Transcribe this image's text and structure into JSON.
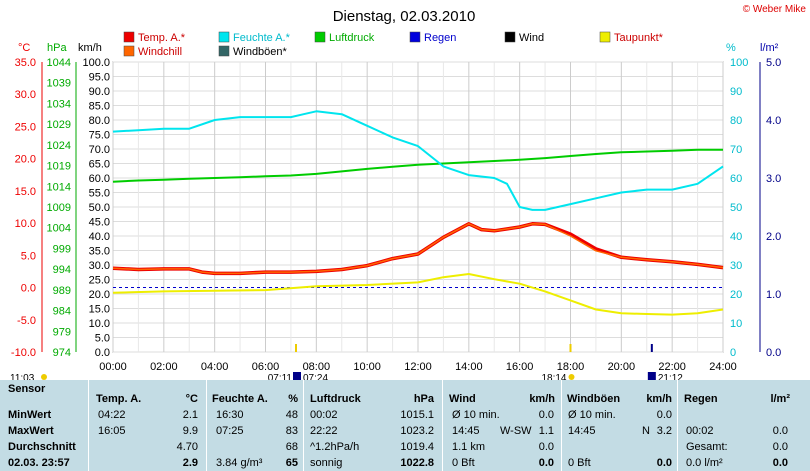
{
  "header": {
    "title": "Dienstag, 02.03.2010",
    "credit": "© Weber Mike"
  },
  "colors": {
    "temp": "#ee0000",
    "humidity": "#00e5ee",
    "pressure": "#00cc00",
    "rain": "#0000dd",
    "wind": "#000000",
    "dewpoint": "#eeee00",
    "windchill": "#ff6600",
    "gust": "#336666"
  },
  "legend": [
    {
      "label": "Temp. A.*",
      "color": "#ee0000"
    },
    {
      "label": "Feuchte A.*",
      "color": "#00e5ee"
    },
    {
      "label": "Luftdruck",
      "color": "#00cc00"
    },
    {
      "label": "Regen",
      "color": "#0000dd"
    },
    {
      "label": "Wind",
      "color": "#000000"
    },
    {
      "label": "Taupunkt*",
      "color": "#eeee00"
    },
    {
      "label": "Windchill",
      "color": "#ff6600"
    },
    {
      "label": "Windböen*",
      "color": "#336666"
    }
  ],
  "axis_units": {
    "celsius": "°C",
    "hpa": "hPa",
    "kmh": "km/h",
    "percent": "%",
    "rain": "l/m²"
  },
  "chart_data": {
    "type": "line",
    "title": "Dienstag, 02.03.2010",
    "x_range": [
      "00:00",
      "24:00"
    ],
    "x_ticks": [
      "00:00",
      "02:00",
      "04:00",
      "06:00",
      "08:00",
      "10:00",
      "12:00",
      "14:00",
      "16:00",
      "18:00",
      "20:00",
      "22:00",
      "24:00"
    ],
    "y_axes": {
      "celsius": {
        "range": [
          -10,
          35
        ],
        "ticks": [
          "-10.0",
          "-5.0",
          "0.0",
          "5.0",
          "10.0",
          "15.0",
          "20.0",
          "25.0",
          "30.0",
          "35.0"
        ]
      },
      "hpa": {
        "range": [
          974,
          1044
        ],
        "ticks": [
          "974",
          "979",
          "984",
          "989",
          "994",
          "999",
          "1004",
          "1009",
          "1014",
          "1019",
          "1024",
          "1029",
          "1034",
          "1039",
          "1044"
        ]
      },
      "kmh": {
        "range": [
          0,
          100
        ],
        "ticks": [
          "0.0",
          "5.0",
          "10.0",
          "15.0",
          "20.0",
          "25.0",
          "30.0",
          "35.0",
          "40.0",
          "45.0",
          "50.0",
          "55.0",
          "60.0",
          "65.0",
          "70.0",
          "75.0",
          "80.0",
          "85.0",
          "90.0",
          "95.0",
          "100.0"
        ]
      },
      "percent": {
        "range": [
          0,
          100
        ],
        "ticks": [
          "0",
          "10",
          "20",
          "30",
          "40",
          "50",
          "60",
          "70",
          "80",
          "90",
          "100"
        ]
      },
      "rain": {
        "range": [
          0,
          5
        ],
        "ticks": [
          "0.0",
          "1.0",
          "2.0",
          "3.0",
          "4.0",
          "5.0"
        ]
      }
    },
    "series": [
      {
        "name": "Temp. A.*",
        "axis": "celsius",
        "x": [
          0,
          1,
          2,
          3,
          3.5,
          4,
          5,
          6,
          7,
          8,
          9,
          10,
          11,
          12,
          13,
          14,
          14.5,
          15,
          16,
          16.5,
          17,
          18,
          19,
          20,
          21,
          22,
          23,
          24
        ],
        "y": [
          3.0,
          2.8,
          2.9,
          2.9,
          2.4,
          2.2,
          2.2,
          2.4,
          2.4,
          2.5,
          2.8,
          3.4,
          4.5,
          5.2,
          7.8,
          9.9,
          9.0,
          8.8,
          9.4,
          9.9,
          9.8,
          8.3,
          6.0,
          4.7,
          4.3,
          4.0,
          3.6,
          3.1
        ]
      },
      {
        "name": "Windchill",
        "axis": "celsius",
        "x": [
          0,
          1,
          2,
          3,
          3.5,
          4,
          5,
          6,
          7,
          8,
          9,
          10,
          11,
          12,
          13,
          14,
          14.5,
          15,
          16,
          16.5,
          17,
          18,
          19,
          20,
          21,
          22,
          23,
          24
        ],
        "y": [
          3.0,
          2.8,
          2.9,
          2.9,
          2.4,
          2.2,
          2.2,
          2.4,
          2.4,
          2.5,
          2.8,
          3.4,
          4.5,
          5.2,
          7.8,
          9.9,
          9.0,
          8.8,
          9.4,
          9.9,
          9.8,
          8.0,
          5.7,
          4.7,
          4.3,
          4.0,
          3.6,
          3.1
        ]
      },
      {
        "name": "Taupunkt*",
        "axis": "celsius",
        "x": [
          0,
          2,
          4,
          6,
          8,
          10,
          12,
          13,
          14,
          15,
          16,
          17,
          18,
          19,
          20,
          21,
          22,
          23,
          24
        ],
        "y": [
          -0.8,
          -0.6,
          -0.5,
          -0.4,
          0.2,
          0.4,
          0.8,
          1.6,
          2.1,
          1.3,
          0.6,
          -0.6,
          -2.0,
          -3.4,
          -4.0,
          -4.1,
          -4.2,
          -4.0,
          -3.4
        ]
      },
      {
        "name": "Feuchte A.*",
        "axis": "percent",
        "x": [
          0,
          1,
          2,
          3,
          4,
          5,
          6,
          7,
          7.5,
          8,
          9,
          10,
          11,
          12,
          13,
          14,
          15,
          15.5,
          16,
          16.5,
          17,
          18,
          19,
          20,
          21,
          22,
          23,
          24
        ],
        "y": [
          76,
          76.5,
          77,
          77,
          80,
          81,
          81,
          81,
          82,
          83,
          82,
          78,
          74,
          71,
          64,
          61,
          60,
          58,
          50,
          49,
          49,
          51,
          53,
          55,
          56,
          56,
          58,
          64
        ]
      },
      {
        "name": "Luftdruck",
        "axis": "hpa",
        "x": [
          0,
          1,
          2,
          3,
          4,
          5,
          6,
          7,
          8,
          9,
          10,
          11,
          12,
          13,
          14,
          15,
          16,
          17,
          18,
          19,
          20,
          21,
          22,
          23,
          24
        ],
        "y": [
          1015.1,
          1015.4,
          1015.6,
          1015.8,
          1016.0,
          1016.2,
          1016.4,
          1016.6,
          1017.0,
          1017.6,
          1018.2,
          1018.7,
          1019.2,
          1019.5,
          1019.8,
          1020.1,
          1020.4,
          1020.8,
          1021.3,
          1021.8,
          1022.2,
          1022.4,
          1022.6,
          1022.8,
          1022.8
        ]
      }
    ],
    "sun_markers": {
      "sunrise": "07:11",
      "sunrise_civil": "07:24",
      "sunset": "18:14",
      "sunset_civil": "21:12",
      "left_time": "11:03"
    },
    "grid": true
  },
  "footer": {
    "headers": {
      "sensor": "Sensor",
      "temp": "Temp. A.",
      "temp_unit": "°C",
      "hum": "Feuchte A.",
      "hum_unit": "%",
      "press": "Luftdruck",
      "press_unit": "hPa",
      "wind": "Wind",
      "wind_unit": "km/h",
      "gust": "Windböen",
      "gust_unit": "km/h",
      "rain": "Regen",
      "rain_unit": "l/m²"
    },
    "rows": [
      {
        "label": "MinWert",
        "temp_t": "04:22",
        "temp_v": "2.1",
        "hum_t": "16:30",
        "hum_v": "48",
        "press_t": "00:02",
        "press_v": "1015.1",
        "wind_t": "Ø 10 min.",
        "wind_v": "0.0",
        "gust_t": "Ø 10 min.",
        "gust_v": "0.0",
        "rain_t": "",
        "rain_v": ""
      },
      {
        "label": "MaxWert",
        "temp_t": "16:05",
        "temp_v": "9.9",
        "hum_t": "07:25",
        "hum_v": "83",
        "press_t": "22:22",
        "press_v": "1023.2",
        "wind_t": "14:45",
        "wind_m": "W-SW",
        "wind_v": "1.1",
        "gust_t": "14:45",
        "gust_m": "N",
        "gust_v": "3.2",
        "rain_t": "00:02",
        "rain_v": "0.0"
      },
      {
        "label": "Durchschnitt",
        "temp_t": "",
        "temp_v": "4.70",
        "hum_t": "",
        "hum_v": "68",
        "press_t": "^1.2hPa/h",
        "press_v": "1019.4",
        "wind_t": "1.1 km",
        "wind_v": "0.0",
        "gust_t": "",
        "gust_v": "",
        "rain_t": "Gesamt:",
        "rain_v": "0.0"
      },
      {
        "label": "02.03. 23:57",
        "temp_t": "",
        "temp_v": "2.9",
        "hum_t": "3.84 g/m³",
        "hum_v": "65",
        "press_t": "sonnig",
        "press_v": "1022.8",
        "wind_t": "0 Bft",
        "wind_v": "0.0",
        "gust_t": "0 Bft",
        "gust_v": "0.0",
        "rain_t": "0.0 l/m²",
        "rain_v": "0.0"
      }
    ]
  }
}
